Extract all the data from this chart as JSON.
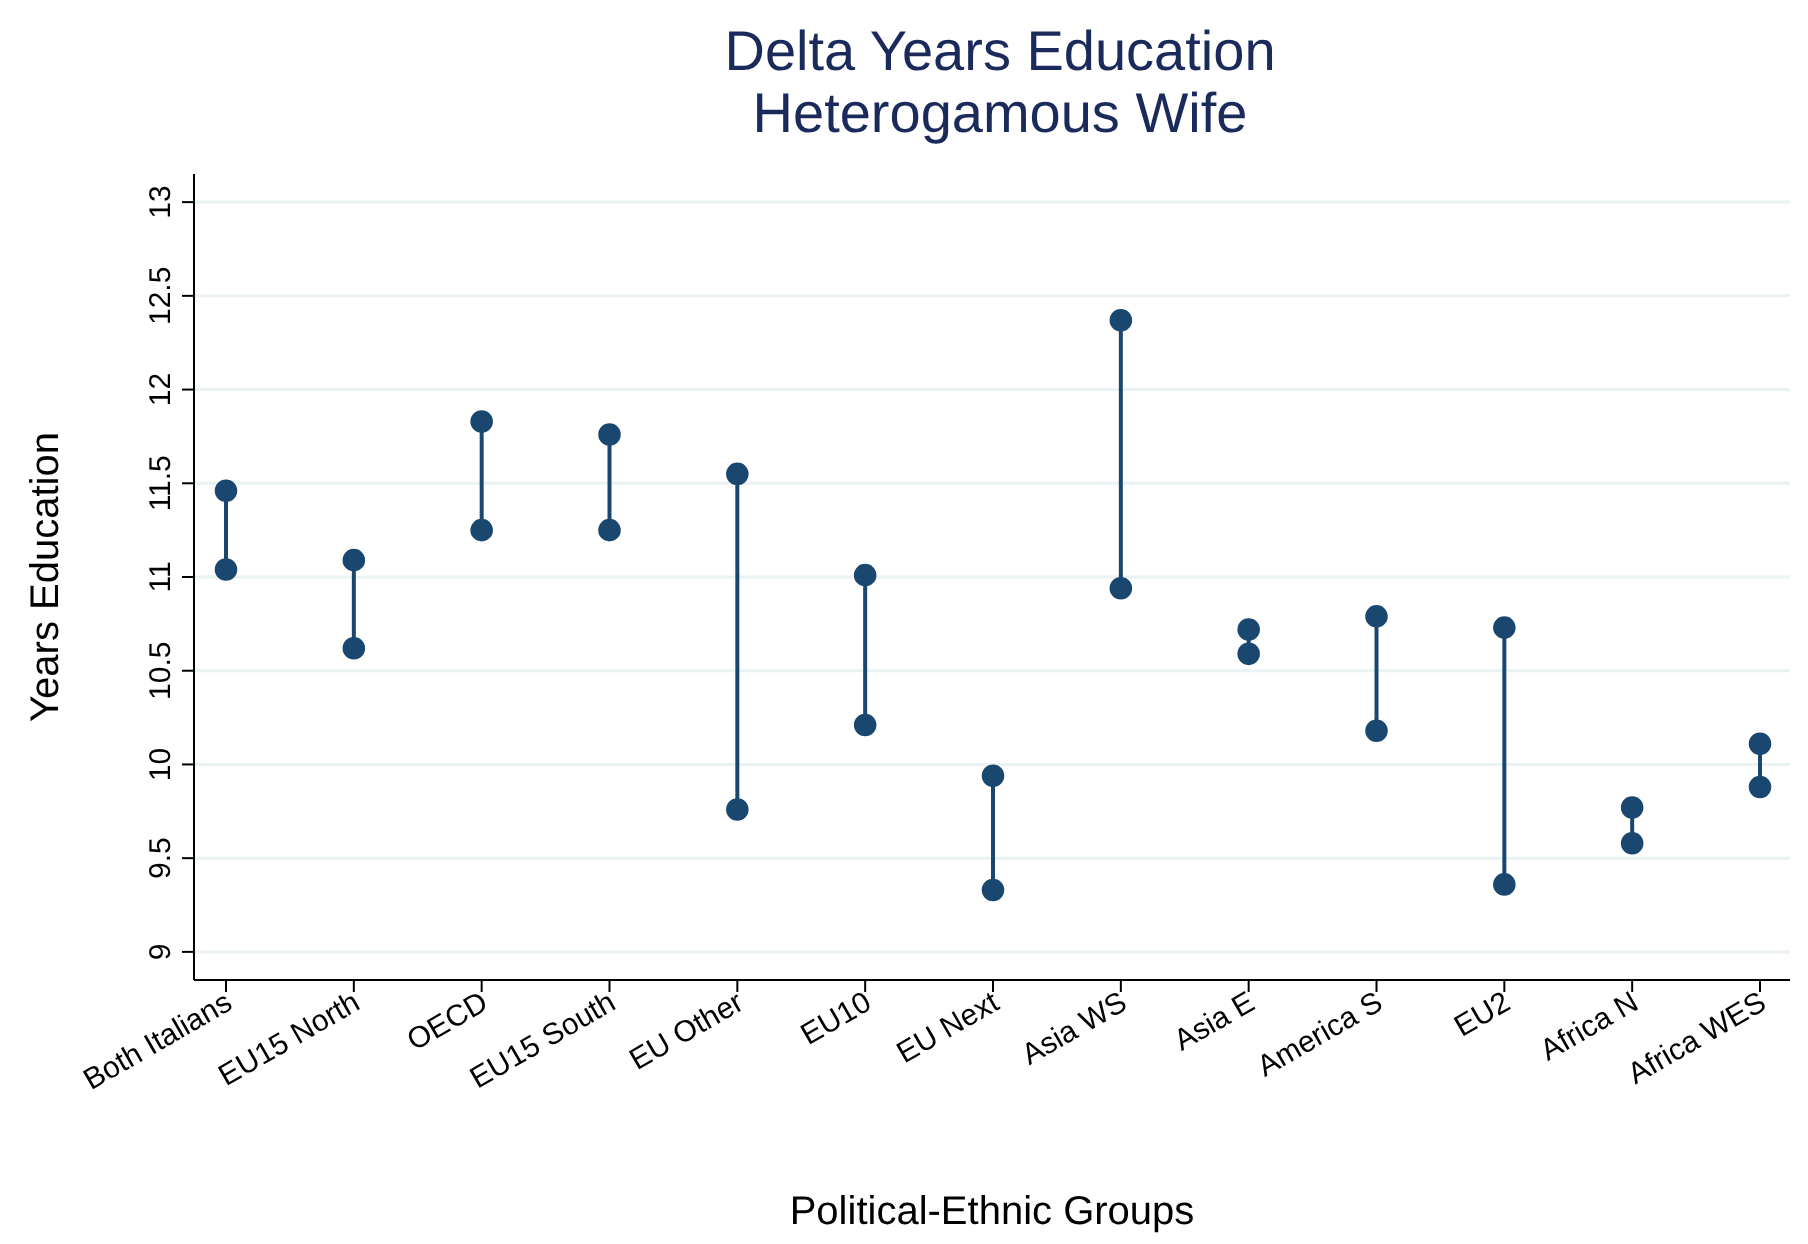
{
  "chart_data": {
    "type": "line",
    "title": "Delta Years Education\nHeterogamous Wife",
    "xlabel": "Political-Ethnic Groups",
    "ylabel": "Years Education",
    "categories": [
      "Both Italians",
      "EU15 North",
      "OECD",
      "EU15 South",
      "EU Other",
      "EU10",
      "EU Next",
      "Asia WS",
      "Asia E",
      "America S",
      "EU2",
      "Africa N",
      "Africa WES"
    ],
    "series": [
      {
        "color": "#1a476f",
        "x": [
          "Both Italians",
          "Both Italians"
        ],
        "values": [
          11.04,
          11.46
        ]
      },
      {
        "color": "#1a476f",
        "x": [
          "EU15 North",
          "EU15 North"
        ],
        "values": [
          10.62,
          11.09
        ]
      },
      {
        "color": "#1a476f",
        "x": [
          "OECD",
          "OECD"
        ],
        "values": [
          11.25,
          11.83
        ]
      },
      {
        "color": "#1a476f",
        "x": [
          "EU15 South",
          "EU15 South"
        ],
        "values": [
          11.25,
          11.76
        ]
      },
      {
        "color": "#1a476f",
        "x": [
          "EU Other",
          "EU Other"
        ],
        "values": [
          9.76,
          11.55
        ]
      },
      {
        "color": "#1a476f",
        "x": [
          "EU10",
          "EU10"
        ],
        "values": [
          10.21,
          11.01
        ]
      },
      {
        "color": "#1a476f",
        "x": [
          "EU Next",
          "EU Next"
        ],
        "values": [
          9.33,
          9.94
        ]
      },
      {
        "color": "#1a476f",
        "x": [
          "Asia WS",
          "Asia WS"
        ],
        "values": [
          10.94,
          12.37
        ]
      },
      {
        "color": "#1a476f",
        "x": [
          "Asia E",
          "Asia E"
        ],
        "values": [
          10.59,
          10.72
        ]
      },
      {
        "color": "#1a476f",
        "x": [
          "America S",
          "America S"
        ],
        "values": [
          10.18,
          10.79
        ]
      },
      {
        "color": "#1a476f",
        "x": [
          "EU2",
          "EU2"
        ],
        "values": [
          9.36,
          10.73
        ]
      },
      {
        "color": "#1a476f",
        "x": [
          "Africa N",
          "Africa N"
        ],
        "values": [
          9.58,
          9.77
        ]
      },
      {
        "color": "#1a476f",
        "x": [
          "Africa WES",
          "Africa WES"
        ],
        "values": [
          9.88,
          10.11
        ]
      }
    ],
    "ylim": [
      8.85,
      13.15
    ],
    "yticks": [
      9,
      9.5,
      10,
      10.5,
      11,
      11.5,
      12,
      12.5,
      13
    ],
    "grid": "y",
    "marker": "circle"
  }
}
